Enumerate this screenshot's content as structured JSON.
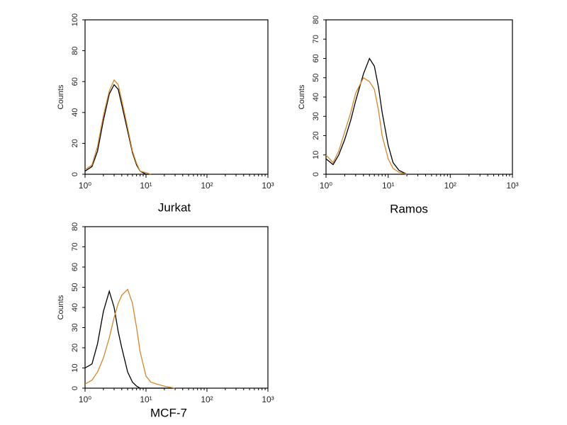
{
  "chart_data": [
    {
      "type": "line",
      "title": "Jurkat",
      "ylabel": "Counts",
      "xscale": "log",
      "xlim": [
        1,
        1000
      ],
      "xticks": [
        {
          "value": 1,
          "label": "10⁰"
        },
        {
          "value": 10,
          "label": "10¹"
        },
        {
          "value": 100,
          "label": "10²"
        },
        {
          "value": 1000,
          "label": "10³"
        }
      ],
      "ylim": [
        0,
        100
      ],
      "yticks": [
        0,
        20,
        40,
        60,
        80,
        100
      ],
      "x": [
        1,
        1.3,
        1.6,
        2,
        2.5,
        3,
        3.5,
        4,
        5,
        6,
        7,
        8,
        10,
        12
      ],
      "series": [
        {
          "color": "#000000",
          "values": [
            2,
            5,
            15,
            35,
            52,
            58,
            55,
            45,
            28,
            14,
            6,
            2,
            0,
            0
          ]
        },
        {
          "color": "#d4862a",
          "values": [
            3,
            6,
            18,
            38,
            54,
            61,
            58,
            48,
            30,
            15,
            7,
            2,
            1,
            0
          ]
        }
      ]
    },
    {
      "type": "line",
      "title": "Ramos",
      "ylabel": "Counts",
      "xscale": "log",
      "xlim": [
        1,
        1000
      ],
      "xticks": [
        {
          "value": 1,
          "label": "10⁰"
        },
        {
          "value": 10,
          "label": "10¹"
        },
        {
          "value": 100,
          "label": "10²"
        },
        {
          "value": 1000,
          "label": "10³"
        }
      ],
      "ylim": [
        0,
        80
      ],
      "yticks": [
        0,
        10,
        20,
        30,
        40,
        50,
        60,
        70,
        80
      ],
      "x": [
        1,
        1.3,
        1.6,
        2,
        2.5,
        3,
        4,
        5,
        6,
        7,
        8,
        10,
        12,
        15,
        20
      ],
      "series": [
        {
          "color": "#000000",
          "values": [
            8,
            5,
            10,
            18,
            28,
            38,
            52,
            60,
            56,
            45,
            32,
            15,
            6,
            2,
            0
          ]
        },
        {
          "color": "#d4862a",
          "values": [
            10,
            6,
            12,
            22,
            32,
            42,
            50,
            48,
            44,
            33,
            20,
            8,
            3,
            1,
            0
          ]
        }
      ]
    },
    {
      "type": "line",
      "title": "MCF-7",
      "ylabel": "Counts",
      "xscale": "log",
      "xlim": [
        1,
        1000
      ],
      "xticks": [
        {
          "value": 1,
          "label": "10⁰"
        },
        {
          "value": 10,
          "label": "10¹"
        },
        {
          "value": 100,
          "label": "10²"
        },
        {
          "value": 1000,
          "label": "10³"
        }
      ],
      "ylim": [
        0,
        80
      ],
      "yticks": [
        0,
        10,
        20,
        30,
        40,
        50,
        60,
        70,
        80
      ],
      "x": [
        1,
        1.3,
        1.6,
        2,
        2.5,
        3,
        3.5,
        4,
        5,
        6,
        7,
        8,
        10,
        12,
        15,
        20,
        30
      ],
      "series": [
        {
          "color": "#000000",
          "values": [
            10,
            12,
            22,
            38,
            48,
            40,
            28,
            20,
            8,
            3,
            1,
            0,
            0,
            0,
            0,
            0,
            0
          ]
        },
        {
          "color": "#d4862a",
          "values": [
            2,
            4,
            8,
            15,
            25,
            35,
            42,
            46,
            49,
            42,
            30,
            18,
            6,
            3,
            2,
            1,
            0
          ]
        }
      ]
    }
  ]
}
